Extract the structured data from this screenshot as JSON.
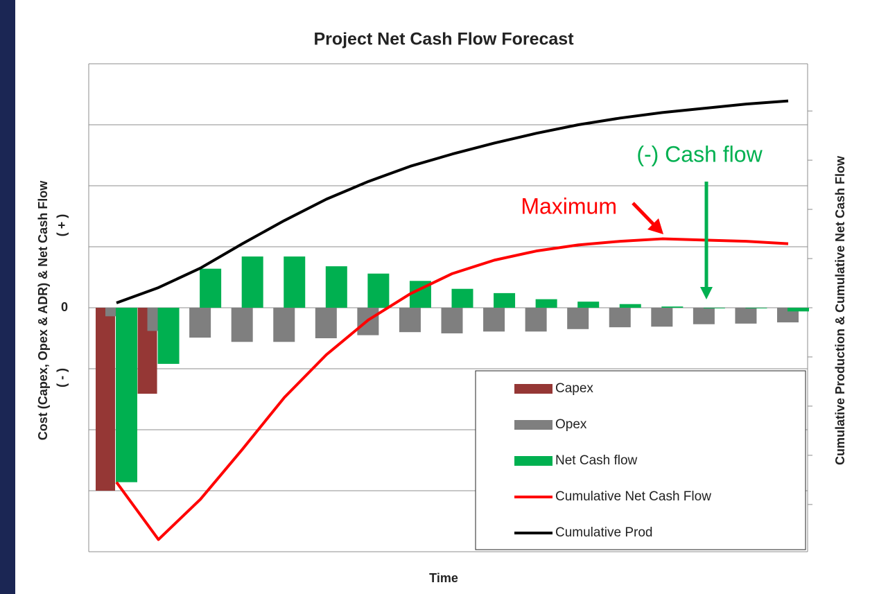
{
  "chart_data": {
    "type": "combo",
    "title": "Project Net Cash Flow Forecast",
    "x_label": "Time",
    "y_label": "Cost (Capex, Opex & ADR) & Net Cash Flow",
    "y_label_positive": "( + )",
    "y_label_negative": "( - )",
    "y2_label": "Cumulative Production & Cumulative Net Cash Flow",
    "categories": [
      null,
      null,
      null,
      null,
      null,
      null,
      null,
      null,
      null,
      null,
      null,
      null,
      null,
      null,
      null,
      null,
      null
    ],
    "ylim": [
      -4,
      4
    ],
    "yticks": [
      {
        "value": -4,
        "label": null
      },
      {
        "value": -3,
        "label": null
      },
      {
        "value": -2,
        "label": null
      },
      {
        "value": -1,
        "label": null
      },
      0,
      {
        "value": 1,
        "label": null
      },
      {
        "value": 2,
        "label": null
      },
      {
        "value": 3,
        "label": null
      },
      {
        "value": 4,
        "label": null
      }
    ],
    "y2lim": [
      -4.96,
      4.96
    ],
    "y2ticks": [
      {
        "value": -4,
        "label": null
      },
      {
        "value": -3,
        "label": null
      },
      {
        "value": -2,
        "label": null
      },
      {
        "value": -1,
        "label": null
      },
      {
        "value": 0,
        "label": null
      },
      {
        "value": 1,
        "label": null
      },
      {
        "value": 2,
        "label": null
      },
      {
        "value": 3,
        "label": null
      },
      {
        "value": 4,
        "label": null
      }
    ],
    "grid": true,
    "legend": "bottom-right",
    "series": [
      {
        "name": "Capex",
        "kind": "bar",
        "color": "#953735",
        "values": [
          -3.0,
          -1.41,
          0,
          0,
          0,
          0,
          0,
          0,
          0,
          0,
          0,
          0,
          0,
          0,
          0,
          0,
          0
        ]
      },
      {
        "name": "Opex",
        "kind": "bar",
        "color": "#7f7f7f",
        "values": [
          -0.14,
          -0.38,
          -0.49,
          -0.56,
          -0.56,
          -0.5,
          -0.45,
          -0.4,
          -0.42,
          -0.39,
          -0.39,
          -0.35,
          -0.32,
          -0.31,
          -0.27,
          -0.26,
          -0.24
        ]
      },
      {
        "name": "Net Cash flow",
        "kind": "bar",
        "color": "#00b050",
        "values": [
          -2.86,
          -0.92,
          0.64,
          0.84,
          0.84,
          0.68,
          0.56,
          0.44,
          0.31,
          0.24,
          0.14,
          0.1,
          0.06,
          0.02,
          -0.01,
          -0.01,
          -0.06
        ]
      },
      {
        "name": "Cumulative Net Cash Flow",
        "kind": "line",
        "color": "#ff0000",
        "values": [
          -2.86,
          -3.8,
          -3.14,
          -2.32,
          -1.47,
          -0.77,
          -0.2,
          0.23,
          0.56,
          0.78,
          0.93,
          1.03,
          1.09,
          1.13,
          1.11,
          1.09,
          1.05
        ]
      },
      {
        "name": "Cumulative Prod",
        "kind": "line",
        "color": "#000000",
        "values": [
          0.08,
          0.33,
          0.65,
          1.05,
          1.43,
          1.78,
          2.07,
          2.32,
          2.52,
          2.7,
          2.86,
          3.0,
          3.11,
          3.2,
          3.27,
          3.34,
          3.39
        ]
      }
    ],
    "annotations": [
      {
        "text": "Maximum",
        "color": "#ff0000"
      },
      {
        "text": "(-) Cash flow",
        "color": "#00b050"
      }
    ]
  }
}
